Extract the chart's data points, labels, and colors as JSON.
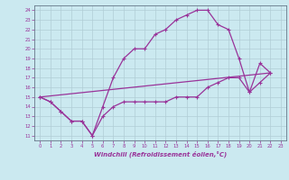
{
  "xlabel": "Windchill (Refroidissement éolien,°C)",
  "bg_color": "#cbe9f0",
  "line_color": "#993399",
  "grid_color": "#b0cdd5",
  "xlim": [
    -0.5,
    23.5
  ],
  "ylim": [
    10.5,
    24.5
  ],
  "xticks": [
    0,
    1,
    2,
    3,
    4,
    5,
    6,
    7,
    8,
    9,
    10,
    11,
    12,
    13,
    14,
    15,
    16,
    17,
    18,
    19,
    20,
    21,
    22,
    23
  ],
  "yticks": [
    11,
    12,
    13,
    14,
    15,
    16,
    17,
    18,
    19,
    20,
    21,
    22,
    23,
    24
  ],
  "line1_x": [
    0,
    1,
    2,
    3,
    4,
    5,
    6,
    7,
    8,
    9,
    10,
    11,
    12,
    13,
    14,
    15,
    16,
    17,
    18,
    19,
    20,
    21,
    22
  ],
  "line1_y": [
    15,
    14.5,
    13.5,
    12.5,
    12.5,
    11,
    14,
    17,
    19,
    20,
    20,
    21.5,
    22,
    23,
    23.5,
    24,
    24,
    22.5,
    22,
    19,
    15.5,
    18.5,
    17.5
  ],
  "line2_x": [
    0,
    1,
    2,
    3,
    4,
    5,
    6,
    7,
    8,
    9,
    10,
    11,
    12,
    13,
    14,
    15,
    16,
    17,
    18,
    19,
    20,
    21,
    22
  ],
  "line2_y": [
    15,
    14.5,
    13.5,
    12.5,
    12.5,
    11,
    13,
    14,
    14.5,
    14.5,
    14.5,
    14.5,
    14.5,
    15,
    15,
    15,
    16,
    16.5,
    17,
    17,
    15.5,
    16.5,
    17.5
  ],
  "line3_x": [
    0,
    22
  ],
  "line3_y": [
    15,
    17.5
  ],
  "spine_color": "#667788"
}
